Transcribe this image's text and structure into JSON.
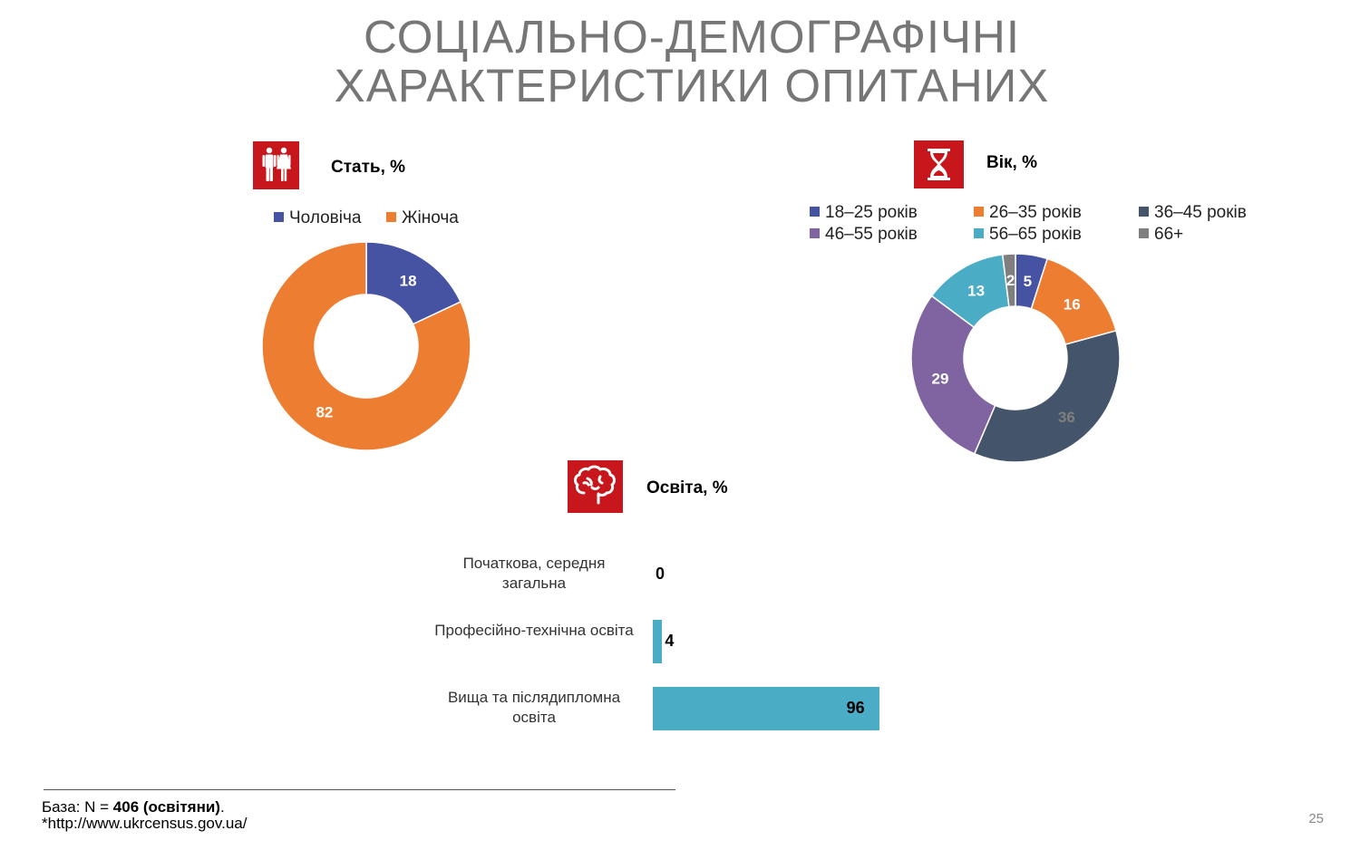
{
  "title_line1": "СОЦІАЛЬНО-ДЕМОГРАФІЧНІ",
  "title_line2": "ХАРАКТЕРИСТИКИ ОПИТАНИХ",
  "gender": {
    "label": "Стать, %",
    "icon": "man-woman-icon"
  },
  "age": {
    "label": "Вік, %",
    "icon": "hourglass-icon"
  },
  "education": {
    "label": "Освіта, %",
    "icon": "brain-icon"
  },
  "footer": {
    "base_prefix": "База: N = ",
    "base_bold": "406 (освітяни)",
    "base_suffix": ".",
    "source": "*http://www.ukrcensus.gov.ua/"
  },
  "page_number": "25",
  "chart_data": [
    {
      "type": "pie",
      "donut": true,
      "title": "Стать, %",
      "legend_placement": "top",
      "series": [
        {
          "name": "Чоловіча",
          "value": 18,
          "color": "#4653a2",
          "label_color": "#ffffff"
        },
        {
          "name": "Жіноча",
          "value": 82,
          "color": "#ed7d31",
          "label_color": "#ffffff"
        }
      ]
    },
    {
      "type": "pie",
      "donut": true,
      "title": "Вік, %",
      "legend_placement": "top",
      "series": [
        {
          "name": "18–25 років",
          "value": 5,
          "color": "#4653a2",
          "label_color": "#ffffff"
        },
        {
          "name": "26–35 років",
          "value": 16,
          "color": "#ed7d31",
          "label_color": "#ffffff"
        },
        {
          "name": "36–45 років",
          "value": 36,
          "color": "#44546a",
          "label_color": "#7f7f7f"
        },
        {
          "name": "46–55 років",
          "value": 29,
          "color": "#8064a2",
          "label_color": "#ffffff"
        },
        {
          "name": "56–65 років",
          "value": 13,
          "color": "#4bacc6",
          "label_color": "#ffffff"
        },
        {
          "name": "66+",
          "value": 2,
          "color": "#7f7f7f",
          "label_color": "#ffffff"
        }
      ]
    },
    {
      "type": "bar",
      "orientation": "horizontal",
      "title": "Освіта, %",
      "categories": [
        "Початкова, середня загальна",
        "Професійно-технічна освіта",
        "Вища та післядипломна освіта"
      ],
      "values": [
        0,
        4,
        96
      ],
      "color": "#4bacc6"
    }
  ]
}
